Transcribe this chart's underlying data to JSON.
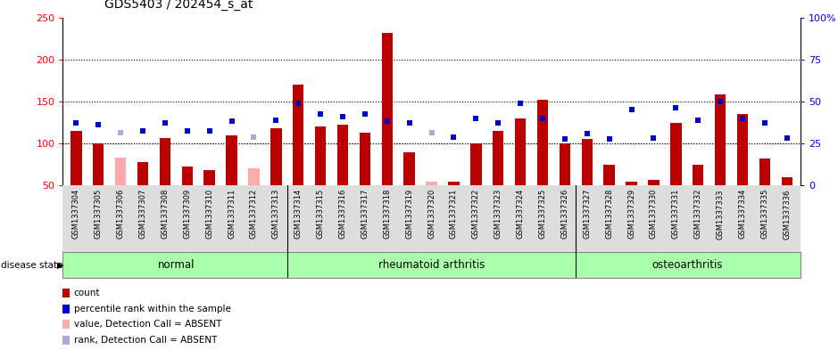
{
  "title": "GDS5403 / 202454_s_at",
  "samples": [
    "GSM1337304",
    "GSM1337305",
    "GSM1337306",
    "GSM1337307",
    "GSM1337308",
    "GSM1337309",
    "GSM1337310",
    "GSM1337311",
    "GSM1337312",
    "GSM1337313",
    "GSM1337314",
    "GSM1337315",
    "GSM1337316",
    "GSM1337317",
    "GSM1337318",
    "GSM1337319",
    "GSM1337320",
    "GSM1337321",
    "GSM1337322",
    "GSM1337323",
    "GSM1337324",
    "GSM1337325",
    "GSM1337326",
    "GSM1337327",
    "GSM1337328",
    "GSM1337329",
    "GSM1337330",
    "GSM1337331",
    "GSM1337332",
    "GSM1337333",
    "GSM1337334",
    "GSM1337335",
    "GSM1337336"
  ],
  "counts": [
    115,
    100,
    83,
    78,
    107,
    73,
    68,
    110,
    70,
    118,
    170,
    120,
    122,
    113,
    232,
    90,
    55,
    55,
    100,
    115,
    130,
    152,
    100,
    105,
    75,
    55,
    57,
    125,
    75,
    158,
    135,
    82,
    60
  ],
  "absent_count": [
    false,
    false,
    true,
    false,
    false,
    false,
    false,
    false,
    true,
    false,
    false,
    false,
    false,
    false,
    false,
    false,
    true,
    false,
    false,
    false,
    false,
    false,
    false,
    false,
    false,
    false,
    false,
    false,
    false,
    false,
    false,
    false,
    false
  ],
  "ranks": [
    125,
    122,
    113,
    115,
    125,
    115,
    115,
    127,
    108,
    128,
    148,
    135,
    132,
    135,
    127,
    125,
    113,
    108,
    130,
    125,
    148,
    130,
    105,
    112,
    105,
    140,
    107,
    143,
    128,
    150,
    130,
    125,
    107
  ],
  "absent_rank": [
    false,
    false,
    true,
    false,
    false,
    false,
    false,
    false,
    true,
    false,
    false,
    false,
    false,
    false,
    false,
    false,
    true,
    false,
    false,
    false,
    false,
    false,
    false,
    false,
    false,
    false,
    false,
    false,
    false,
    false,
    false,
    false,
    false
  ],
  "disease_groups": [
    {
      "label": "normal",
      "start": 0,
      "end": 10
    },
    {
      "label": "rheumatoid arthritis",
      "start": 10,
      "end": 23
    },
    {
      "label": "osteoarthritis",
      "start": 23,
      "end": 33
    }
  ],
  "bar_color": "#bb0000",
  "absent_bar_color": "#ffaaaa",
  "rank_color": "#0000cc",
  "absent_rank_color": "#aaaadd",
  "left_ylim": [
    50,
    250
  ],
  "right_ylim": [
    0,
    100
  ],
  "left_yticks": [
    50,
    100,
    150,
    200,
    250
  ],
  "right_yticks": [
    0,
    25,
    50,
    75,
    100
  ],
  "right_yticklabels": [
    "0",
    "25",
    "50",
    "75",
    "100%"
  ],
  "grid_values": [
    100,
    150,
    200
  ],
  "group_color": "#aaffaa",
  "bg_color": "#ffffff",
  "xticklabel_bg": "#dddddd",
  "legend_items": [
    {
      "color": "#bb0000",
      "marker": "s",
      "label": "count"
    },
    {
      "color": "#0000cc",
      "marker": "s",
      "label": "percentile rank within the sample"
    },
    {
      "color": "#ffaaaa",
      "marker": "s",
      "label": "value, Detection Call = ABSENT"
    },
    {
      "color": "#aaaadd",
      "marker": "s",
      "label": "rank, Detection Call = ABSENT"
    }
  ]
}
